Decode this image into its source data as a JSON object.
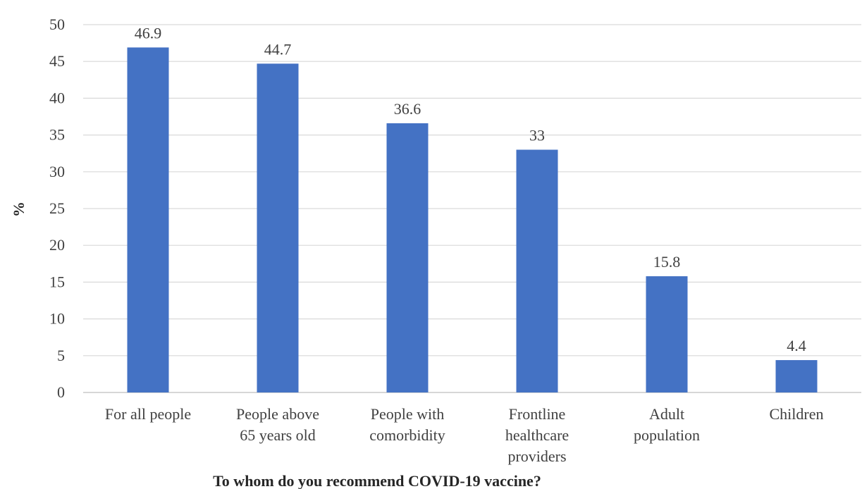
{
  "chart_data": {
    "type": "bar",
    "title": "",
    "xlabel": "To whom do you recommend COVID-19 vaccine?",
    "ylabel": "%",
    "ylim": [
      0,
      50
    ],
    "yticks": [
      0,
      5,
      10,
      15,
      20,
      25,
      30,
      35,
      40,
      45,
      50
    ],
    "grid": true,
    "bar_color": "#4472c4",
    "categories": [
      [
        "For all people"
      ],
      [
        "People above",
        "65 years old"
      ],
      [
        "People with",
        "comorbidity"
      ],
      [
        "Frontline",
        "healthcare",
        "providers"
      ],
      [
        "Adult",
        "population"
      ],
      [
        "Children"
      ]
    ],
    "values": [
      46.9,
      44.7,
      36.6,
      33,
      15.8,
      4.4
    ],
    "value_labels": [
      "46.9",
      "44.7",
      "36.6",
      "33",
      "15.8",
      "4.4"
    ]
  }
}
